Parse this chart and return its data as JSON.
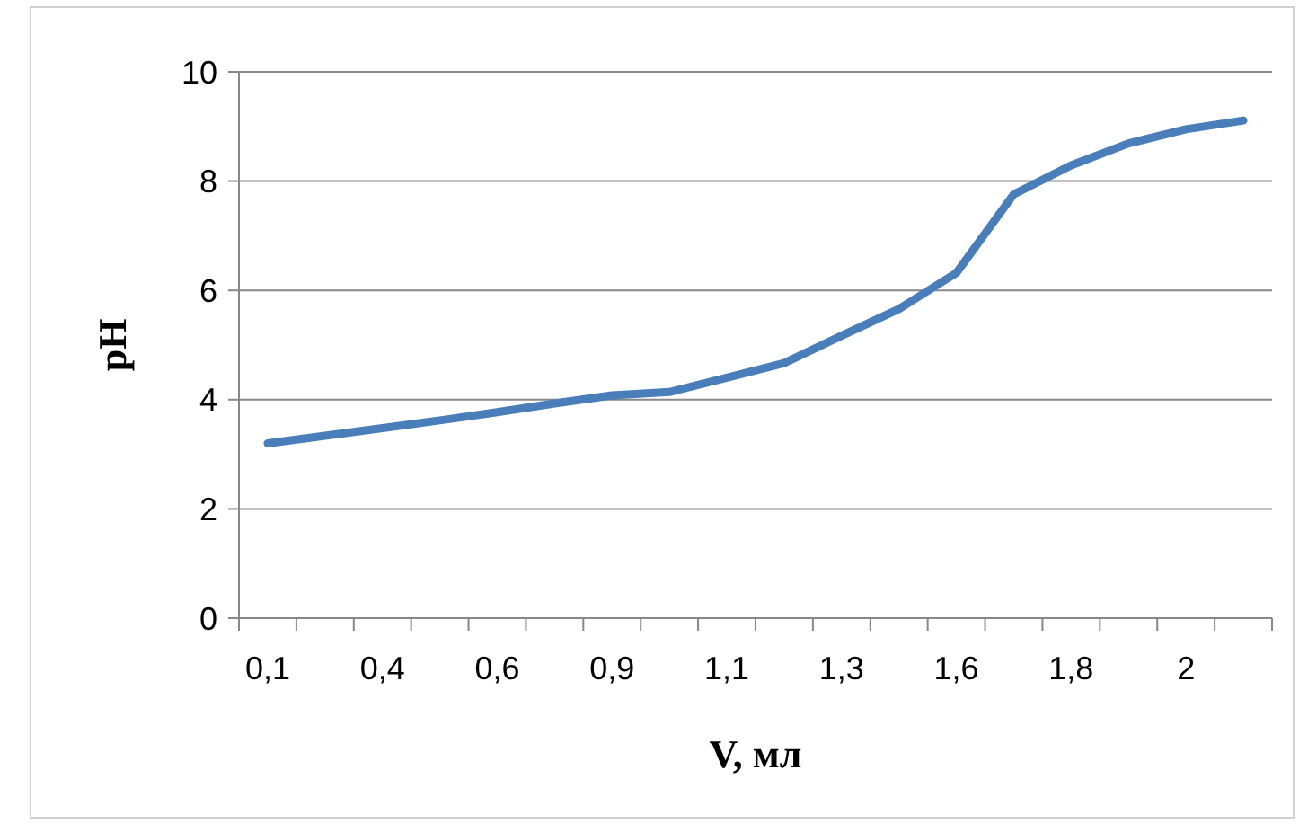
{
  "chart_data": {
    "type": "line",
    "xlabel": "V, мл",
    "ylabel": "pH",
    "categories": [
      "0,1",
      null,
      "0,4",
      null,
      "0,6",
      null,
      "0,9",
      null,
      "1,1",
      null,
      "1,3",
      null,
      "1,6",
      null,
      "1,8",
      null,
      "2",
      null
    ],
    "series": [
      {
        "color": "#4a7ebb",
        "values": [
          3.2,
          3.34,
          3.48,
          3.62,
          3.77,
          3.93,
          4.08,
          4.14,
          4.4,
          4.67,
          5.17,
          5.66,
          6.32,
          7.76,
          8.29,
          8.69,
          8.95,
          9.11
        ]
      }
    ],
    "ylim": [
      0,
      10
    ],
    "yticks": [
      0,
      2,
      4,
      6,
      8,
      10
    ],
    "grid": "y",
    "marker": "none",
    "line_style": "solid"
  }
}
